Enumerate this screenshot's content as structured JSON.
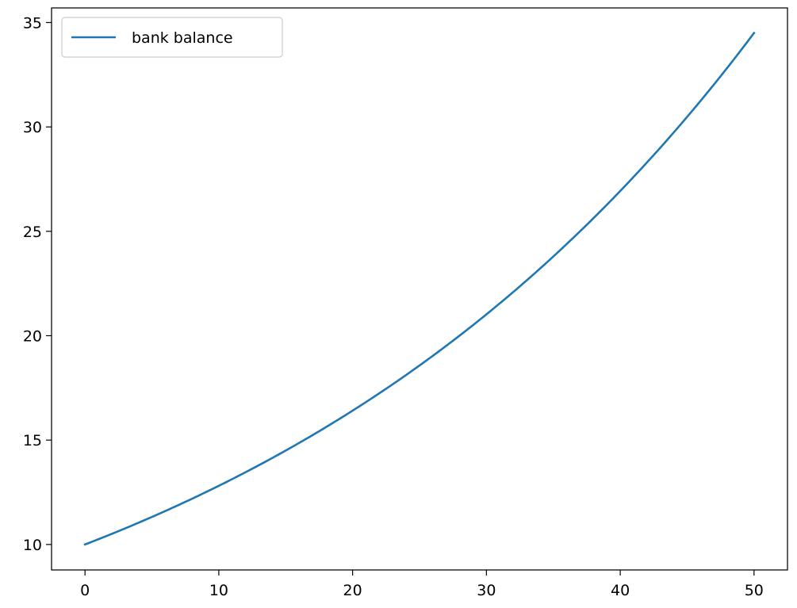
{
  "chart_data": {
    "type": "line",
    "title": "",
    "xlabel": "",
    "ylabel": "",
    "xlim": [
      -2.5,
      52.5
    ],
    "ylim": [
      8.78,
      35.7
    ],
    "xticks": [
      0,
      10,
      20,
      30,
      40,
      50
    ],
    "yticks": [
      10,
      15,
      20,
      25,
      30,
      35
    ],
    "grid": false,
    "legend_position": "top-left",
    "series": [
      {
        "name": "bank balance",
        "color": "#1f77b4",
        "x": [
          0,
          5,
          10,
          15,
          20,
          25,
          30,
          35,
          40,
          45,
          50
        ],
        "values": [
          10.0,
          11.25,
          12.8,
          14.6,
          16.4,
          18.6,
          21.1,
          23.9,
          27.0,
          30.5,
          34.5
        ]
      }
    ]
  }
}
